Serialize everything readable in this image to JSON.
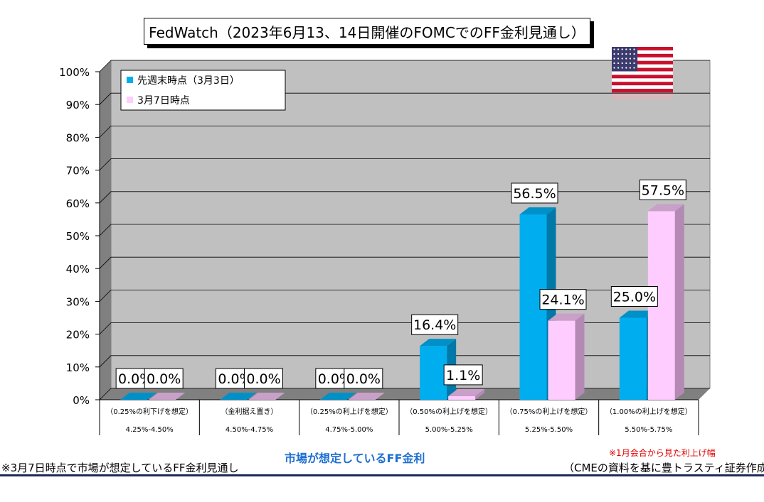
{
  "title": "FedWatch（2023年6月13、14日開催のFOMCでのFF金利見通し）",
  "chart_data": {
    "type": "bar",
    "title": "FedWatch（2023年6月13、14日開催のFOMCでのFF金利見通し）",
    "ylim": [
      0,
      100
    ],
    "yticks": [
      "0%",
      "10%",
      "20%",
      "30%",
      "40%",
      "50%",
      "60%",
      "70%",
      "80%",
      "90%",
      "100%"
    ],
    "grid": true,
    "legend_position": "top-left",
    "categories": [
      {
        "scenario": "（0.25%の利下げを想定）",
        "range": "4.25%-4.50%"
      },
      {
        "scenario": "（金利据え置き）",
        "range": "4.50%-4.75%"
      },
      {
        "scenario": "（0.25%の利上げを想定）",
        "range": "4.75%-5.00%"
      },
      {
        "scenario": "（0.50%の利上げを想定）",
        "range": "5.00%-5.25%"
      },
      {
        "scenario": "（0.75%の利上げを想定）",
        "range": "5.25%-5.50%"
      },
      {
        "scenario": "（1.00%の利上げを想定）",
        "range": "5.50%-5.75%"
      }
    ],
    "series": [
      {
        "name": "先週末時点（3月3日）",
        "color": "#00aeef",
        "values": [
          0.0,
          0.0,
          0.0,
          16.4,
          56.5,
          25.0
        ],
        "labels": [
          "0.0%",
          "0.0%",
          "0.0%",
          "16.4%",
          "56.5%",
          "25.0%"
        ]
      },
      {
        "name": "3月7日時点",
        "color": "#ffccff",
        "values": [
          0.0,
          0.0,
          0.0,
          1.1,
          24.1,
          57.5
        ],
        "labels": [
          "0.0%",
          "0.0%",
          "0.0%",
          "1.1%",
          "24.1%",
          "57.5%"
        ]
      }
    ],
    "xlabel": "市場が想定しているFF金利"
  },
  "footer": {
    "left": "※3月7日時点で市場が想定しているFF金利見通し",
    "center": "市場が想定しているFF金利",
    "note": "※1月会合から見た利上げ幅",
    "source": "（CMEの資料を基に豊トラスティ証券作成）"
  },
  "flag": {
    "icon": "us-flag-icon",
    "stripe_red": "#c8102e",
    "canton_blue": "#3c3b6e"
  }
}
